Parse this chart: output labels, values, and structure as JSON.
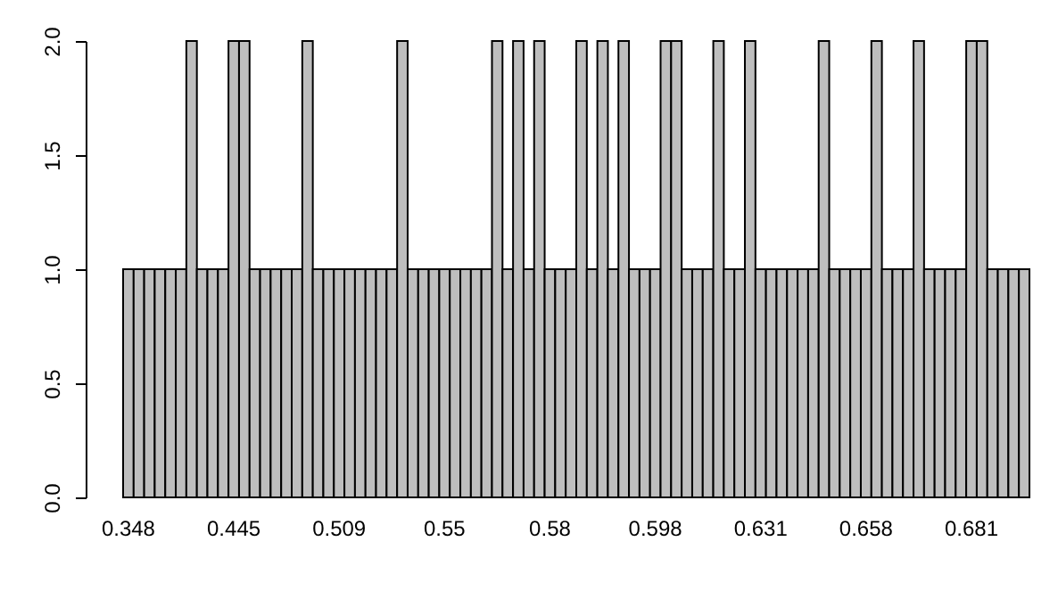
{
  "chart_data": {
    "type": "bar",
    "categories": [
      "0.348",
      null,
      null,
      null,
      null,
      null,
      null,
      null,
      null,
      null,
      "0.445",
      null,
      null,
      null,
      null,
      null,
      null,
      null,
      null,
      null,
      "0.509",
      null,
      null,
      null,
      null,
      null,
      null,
      null,
      null,
      null,
      "0.55",
      null,
      null,
      null,
      null,
      null,
      null,
      null,
      null,
      null,
      "0.58",
      null,
      null,
      null,
      null,
      null,
      null,
      null,
      null,
      null,
      "0.598",
      null,
      null,
      null,
      null,
      null,
      null,
      null,
      null,
      null,
      "0.631",
      null,
      null,
      null,
      null,
      null,
      null,
      null,
      null,
      null,
      "0.658",
      null,
      null,
      null,
      null,
      null,
      null,
      null,
      null,
      null,
      "0.681",
      null,
      null,
      null,
      null,
      null
    ],
    "values": [
      1,
      1,
      1,
      1,
      1,
      1,
      2,
      1,
      1,
      1,
      2,
      2,
      1,
      1,
      1,
      1,
      1,
      2,
      1,
      1,
      1,
      1,
      1,
      1,
      1,
      1,
      2,
      1,
      1,
      1,
      1,
      1,
      1,
      1,
      1,
      2,
      1,
      2,
      1,
      2,
      1,
      1,
      1,
      2,
      1,
      2,
      1,
      2,
      1,
      1,
      1,
      2,
      2,
      1,
      1,
      1,
      2,
      1,
      1,
      2,
      1,
      1,
      1,
      1,
      1,
      1,
      2,
      1,
      1,
      1,
      1,
      2,
      1,
      1,
      1,
      2,
      1,
      1,
      1,
      1,
      2,
      2,
      1,
      1,
      1,
      1
    ],
    "color": "#bebebe",
    "ylim": [
      0,
      2
    ],
    "yticks": [
      {
        "value": 0,
        "label": "0.0"
      },
      0.5,
      {
        "value": 1,
        "label": "1.0"
      },
      1.5,
      {
        "value": 2,
        "label": "2.0"
      }
    ]
  }
}
